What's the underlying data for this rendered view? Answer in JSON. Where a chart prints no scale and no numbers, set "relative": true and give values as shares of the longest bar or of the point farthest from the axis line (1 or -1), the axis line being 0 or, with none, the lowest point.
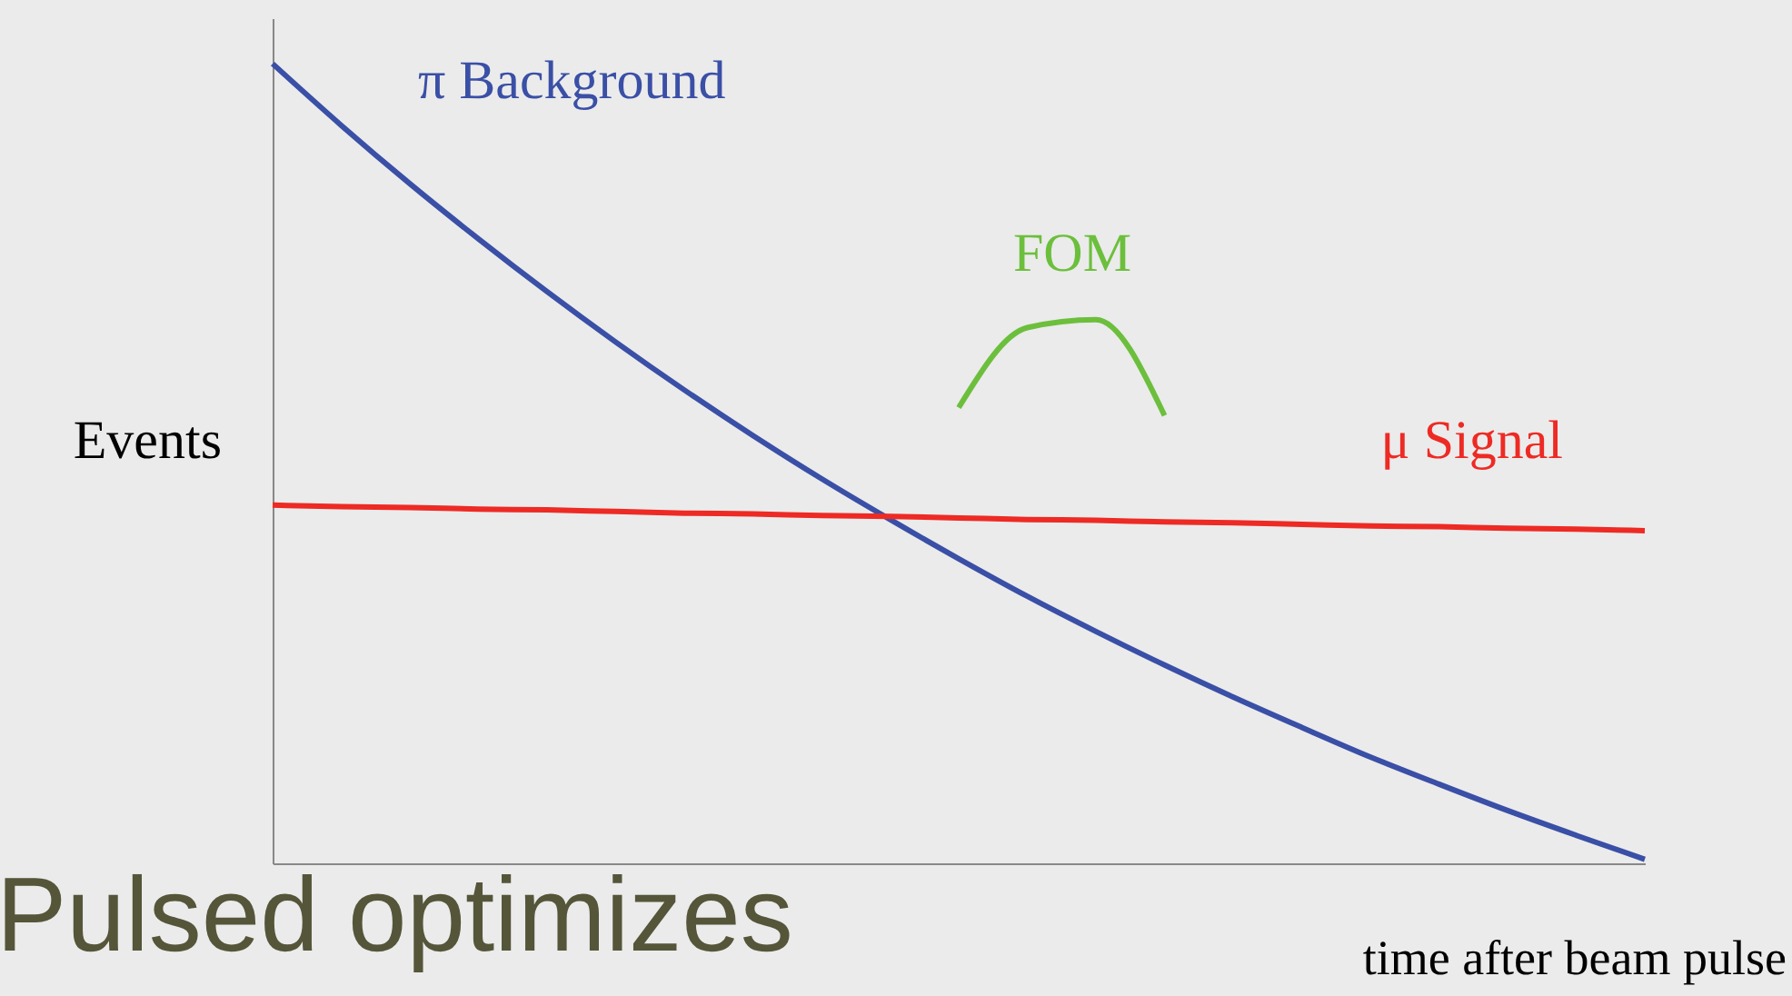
{
  "chart_data": {
    "type": "line",
    "title": "Pulsed optimizes",
    "xlabel": "time after beam pulse",
    "ylabel": "Events",
    "relative": true,
    "tick_labels": false,
    "grid": false,
    "categories": [
      null,
      null,
      null,
      null,
      null,
      null,
      null,
      null,
      null,
      null,
      null,
      null,
      null,
      null,
      null,
      null,
      null,
      null,
      null,
      null,
      null
    ],
    "series": [
      {
        "name": "π Background",
        "color": "#3a4fa6",
        "values": [
          1.0,
          0.923,
          0.85,
          0.781,
          0.715,
          0.652,
          0.592,
          0.535,
          0.481,
          0.43,
          0.381,
          0.334,
          0.29,
          0.248,
          0.208,
          0.17,
          0.133,
          0.099,
          0.066,
          0.035,
          0.005
        ]
      },
      {
        "name": "μ Signal",
        "color": "#ee2a24",
        "values": [
          0.448,
          0.446,
          0.445,
          0.443,
          0.442,
          0.44,
          0.438,
          0.437,
          0.435,
          0.434,
          0.432,
          0.43,
          0.429,
          0.427,
          0.426,
          0.424,
          0.422,
          0.421,
          0.419,
          0.418,
          0.416
        ]
      },
      {
        "name": "FOM",
        "color": "#6cbf3c",
        "values": [
          null,
          null,
          null,
          null,
          null,
          null,
          null,
          null,
          null,
          null,
          0.57,
          0.67,
          0.68,
          0.56,
          null,
          null,
          null,
          null,
          null,
          null,
          null
        ]
      }
    ]
  }
}
